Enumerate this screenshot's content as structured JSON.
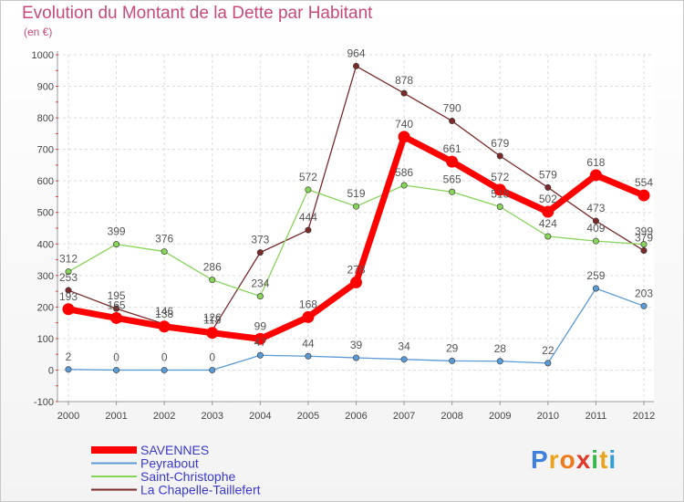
{
  "header": {
    "title": "Evolution du Montant de la Dette par Habitant",
    "subtitle": "(en €)"
  },
  "chart_data": {
    "type": "line",
    "x": [
      "2000",
      "2001",
      "2002",
      "2003",
      "2004",
      "2005",
      "2006",
      "2007",
      "2008",
      "2009",
      "2010",
      "2011",
      "2012"
    ],
    "ylim": [
      -100,
      1000
    ],
    "yticks": [
      -100,
      0,
      100,
      200,
      300,
      400,
      500,
      600,
      700,
      800,
      900,
      1000
    ],
    "grid": true,
    "legend_position": "bottom-left",
    "series": [
      {
        "name": "SAVENNES",
        "color": "#ff0000",
        "values": [
          193,
          165,
          138,
          118,
          99,
          168,
          278,
          740,
          661,
          572,
          502,
          618,
          554
        ]
      },
      {
        "name": "Peyrabout",
        "color": "#5b9bd5",
        "values": [
          2,
          0,
          0,
          0,
          47,
          44,
          39,
          34,
          29,
          28,
          22,
          259,
          203
        ]
      },
      {
        "name": "Saint-Christophe",
        "color": "#88d35a",
        "values": [
          312,
          399,
          376,
          286,
          234,
          572,
          519,
          586,
          565,
          518,
          424,
          409,
          399
        ]
      },
      {
        "name": "La Chapelle-Taillefert",
        "color": "#7a2a2a",
        "values": [
          253,
          195,
          146,
          126,
          373,
          444,
          964,
          878,
          790,
          679,
          579,
          473,
          379
        ]
      }
    ]
  },
  "logo": {
    "letters": [
      "P",
      "r",
      "o",
      "x",
      "i",
      "t",
      "i"
    ],
    "colors": [
      "#3d7fd9",
      "#e8a321",
      "#ef7a1a",
      "#e03a2a",
      "#36b54a",
      "#e8a321",
      "#2f9fd9"
    ]
  }
}
